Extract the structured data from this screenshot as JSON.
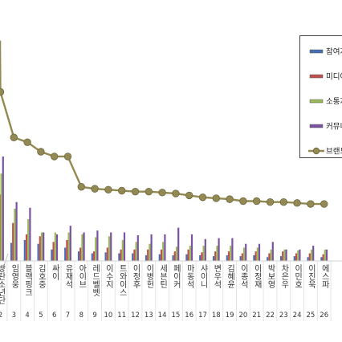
{
  "chart_data": {
    "type": "bar",
    "categories": [
      "2",
      "3",
      "4",
      "5",
      "6",
      "7",
      "8",
      "9",
      "10",
      "11",
      "12",
      "13",
      "14",
      "15",
      "16",
      "17",
      "18",
      "19",
      "20",
      "21",
      "22",
      "23",
      "24",
      "25",
      "26"
    ],
    "labels": [
      "방탄소년단",
      "임영웅",
      "블랙핑크",
      "김호중",
      "싸이",
      "유재석",
      "아이브",
      "레드벨벳",
      "이수지",
      "트와이스",
      "이정후",
      "이병헌",
      "세븐틴",
      "페이커",
      "마동석",
      "샤이니",
      "변우석",
      "김혜윤",
      "이종석",
      "이정재",
      "박보영",
      "차은우",
      "이민호",
      "이진욱",
      "에스파"
    ],
    "series": [
      {
        "name": "참여지수",
        "color": "#4a6fb5",
        "values": [
          38,
          19,
          22,
          18,
          12,
          14,
          10,
          8,
          9,
          8,
          8,
          6,
          7,
          6,
          7,
          6,
          5,
          6,
          5,
          6,
          4,
          5,
          5,
          4,
          4
        ]
      },
      {
        "name": "미디어지수",
        "color": "#c0504d",
        "values": [
          70,
          40,
          28,
          26,
          20,
          22,
          14,
          10,
          14,
          12,
          12,
          12,
          12,
          10,
          12,
          9,
          10,
          10,
          8,
          10,
          8,
          10,
          8,
          8,
          7
        ]
      },
      {
        "name": "소통지수",
        "color": "#9bbb59",
        "values": [
          92,
          55,
          44,
          30,
          30,
          30,
          28,
          25,
          26,
          22,
          20,
          18,
          20,
          15,
          16,
          16,
          16,
          16,
          14,
          14,
          12,
          12,
          11,
          12,
          12
        ]
      },
      {
        "name": "커뮤니티지수",
        "color": "#7b52a3",
        "values": [
          110,
          62,
          56,
          30,
          28,
          37,
          30,
          32,
          30,
          30,
          27,
          28,
          28,
          35,
          28,
          23,
          24,
          24,
          18,
          18,
          20,
          12,
          12,
          16,
          12
        ]
      },
      {
        "name": "브랜드평판지수",
        "color": "#938953",
        "values": [
          178,
          130,
          125,
          115,
          110,
          110,
          78,
          76,
          75,
          74,
          73,
          73,
          72,
          71,
          69,
          67,
          66,
          65,
          63,
          63,
          62,
          62,
          61,
          60,
          60
        ]
      }
    ],
    "legend_position": "top-right",
    "legend_labels": [
      "참여지",
      "미디어",
      "소통지",
      "커뮤니",
      "브랜드"
    ],
    "grid": false,
    "ylim": [
      0,
      230
    ]
  }
}
